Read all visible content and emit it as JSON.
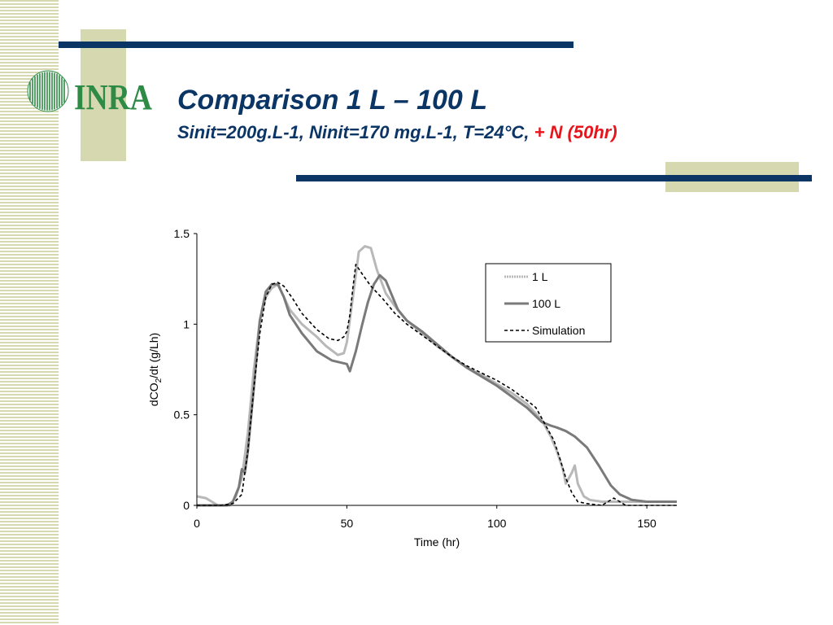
{
  "slide": {
    "title": "Comparison 1 L – 100 L",
    "subtitle_main": "Sinit=200g.L-1, Ninit=170 mg.L-1, T=24°C,",
    "subtitle_accent": "+ N (50hr)",
    "logo_text": "INRA"
  },
  "colors": {
    "title": "#0b3565",
    "accent": "#e8141b",
    "decoration": "#d6d9b0",
    "logo_green": "#2e8b45",
    "series_1L": "#b8b8b8",
    "series_100L": "#7a7a7a",
    "series_sim": "#000000"
  },
  "chart_data": {
    "type": "line",
    "title": "",
    "xlabel": "Time (hr)",
    "ylabel_parts": [
      "dCO",
      "2",
      "/dt (g/Lh)"
    ],
    "xlim": [
      0,
      160
    ],
    "ylim": [
      0,
      1.5
    ],
    "x_ticks": [
      0,
      50,
      100,
      150
    ],
    "y_ticks": [
      0,
      0.5,
      1,
      1.5
    ],
    "y_tick_labels": [
      "0",
      "0.5",
      "1",
      "1.5"
    ],
    "grid": false,
    "legend_position": "top-right",
    "series": [
      {
        "name": "1 L",
        "points": [
          [
            0,
            0.05
          ],
          [
            3,
            0.04
          ],
          [
            5,
            0.02
          ],
          [
            7,
            0
          ],
          [
            11,
            0
          ],
          [
            13,
            0.05
          ],
          [
            15,
            0.15
          ],
          [
            17,
            0.4
          ],
          [
            19,
            0.75
          ],
          [
            21,
            1.02
          ],
          [
            23,
            1.15
          ],
          [
            25,
            1.2
          ],
          [
            27,
            1.22
          ],
          [
            29,
            1.15
          ],
          [
            31,
            1.08
          ],
          [
            35,
            1
          ],
          [
            40,
            0.93
          ],
          [
            43,
            0.88
          ],
          [
            47,
            0.83
          ],
          [
            49,
            0.84
          ],
          [
            50,
            0.9
          ],
          [
            52,
            1.15
          ],
          [
            54,
            1.4
          ],
          [
            56,
            1.43
          ],
          [
            58,
            1.42
          ],
          [
            60,
            1.3
          ],
          [
            63,
            1.17
          ],
          [
            66,
            1.1
          ],
          [
            70,
            1.02
          ],
          [
            75,
            0.95
          ],
          [
            80,
            0.88
          ],
          [
            85,
            0.82
          ],
          [
            90,
            0.76
          ],
          [
            95,
            0.72
          ],
          [
            100,
            0.67
          ],
          [
            105,
            0.62
          ],
          [
            110,
            0.56
          ],
          [
            115,
            0.47
          ],
          [
            118,
            0.38
          ],
          [
            120,
            0.3
          ],
          [
            122,
            0.2
          ],
          [
            123,
            0.12
          ],
          [
            125,
            0.18
          ],
          [
            126,
            0.22
          ],
          [
            127,
            0.12
          ],
          [
            129,
            0.05
          ],
          [
            131,
            0.03
          ],
          [
            135,
            0.02
          ],
          [
            140,
            0.02
          ],
          [
            150,
            0.02
          ],
          [
            160,
            0.02
          ]
        ]
      },
      {
        "name": "100 L",
        "points": [
          [
            0,
            0
          ],
          [
            5,
            0
          ],
          [
            10,
            0
          ],
          [
            12,
            0.02
          ],
          [
            14,
            0.1
          ],
          [
            15,
            0.2
          ],
          [
            16,
            0.18
          ],
          [
            17,
            0.3
          ],
          [
            19,
            0.65
          ],
          [
            21,
            1.02
          ],
          [
            23,
            1.18
          ],
          [
            25,
            1.22
          ],
          [
            27,
            1.22
          ],
          [
            29,
            1.15
          ],
          [
            31,
            1.05
          ],
          [
            35,
            0.95
          ],
          [
            40,
            0.85
          ],
          [
            45,
            0.8
          ],
          [
            50,
            0.78
          ],
          [
            51,
            0.74
          ],
          [
            53,
            0.85
          ],
          [
            55,
            0.99
          ],
          [
            57,
            1.12
          ],
          [
            59,
            1.22
          ],
          [
            61,
            1.27
          ],
          [
            63,
            1.24
          ],
          [
            65,
            1.16
          ],
          [
            67,
            1.08
          ],
          [
            70,
            1.02
          ],
          [
            75,
            0.96
          ],
          [
            80,
            0.89
          ],
          [
            85,
            0.82
          ],
          [
            90,
            0.76
          ],
          [
            95,
            0.71
          ],
          [
            100,
            0.66
          ],
          [
            105,
            0.6
          ],
          [
            110,
            0.54
          ],
          [
            115,
            0.46
          ],
          [
            118,
            0.44
          ],
          [
            120,
            0.43
          ],
          [
            123,
            0.41
          ],
          [
            126,
            0.38
          ],
          [
            130,
            0.32
          ],
          [
            134,
            0.22
          ],
          [
            138,
            0.11
          ],
          [
            141,
            0.06
          ],
          [
            145,
            0.03
          ],
          [
            150,
            0.02
          ],
          [
            160,
            0.02
          ]
        ]
      },
      {
        "name": "Simulation",
        "points": [
          [
            0,
            0
          ],
          [
            8,
            0
          ],
          [
            12,
            0.01
          ],
          [
            15,
            0.06
          ],
          [
            17,
            0.3
          ],
          [
            19,
            0.65
          ],
          [
            21,
            0.95
          ],
          [
            23,
            1.15
          ],
          [
            25,
            1.22
          ],
          [
            27,
            1.23
          ],
          [
            29,
            1.21
          ],
          [
            32,
            1.14
          ],
          [
            35,
            1.06
          ],
          [
            40,
            0.97
          ],
          [
            44,
            0.92
          ],
          [
            47,
            0.91
          ],
          [
            49,
            0.93
          ],
          [
            50,
            0.96
          ],
          [
            51,
            1.05
          ],
          [
            52,
            1.2
          ],
          [
            53,
            1.33
          ],
          [
            55,
            1.28
          ],
          [
            58,
            1.21
          ],
          [
            62,
            1.14
          ],
          [
            66,
            1.06
          ],
          [
            70,
            1.0
          ],
          [
            75,
            0.94
          ],
          [
            80,
            0.88
          ],
          [
            85,
            0.82
          ],
          [
            90,
            0.77
          ],
          [
            95,
            0.73
          ],
          [
            100,
            0.69
          ],
          [
            105,
            0.64
          ],
          [
            110,
            0.58
          ],
          [
            113,
            0.54
          ],
          [
            115,
            0.48
          ],
          [
            117,
            0.42
          ],
          [
            119,
            0.36
          ],
          [
            121,
            0.26
          ],
          [
            123,
            0.15
          ],
          [
            125,
            0.07
          ],
          [
            127,
            0.02
          ],
          [
            130,
            0.01
          ],
          [
            135,
            0
          ],
          [
            139,
            0.04
          ],
          [
            141,
            0.02
          ],
          [
            143,
            0
          ],
          [
            160,
            0
          ]
        ]
      }
    ]
  }
}
